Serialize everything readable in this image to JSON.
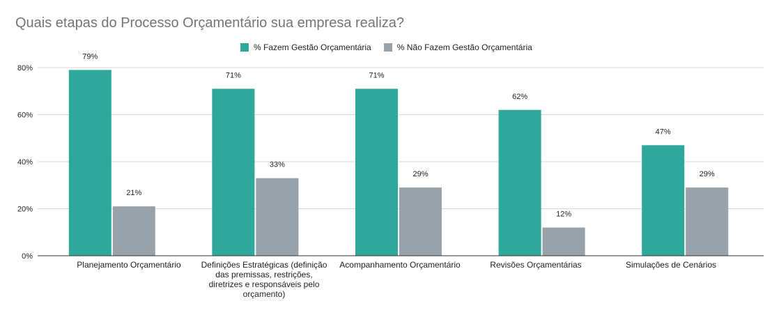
{
  "chart_data": {
    "type": "bar",
    "title": "Quais etapas do Processo Orçamentário sua empresa realiza?",
    "categories": [
      "Planejamento Orçamentário",
      "Definições Estratégicas (definição das premissas, restrições, diretrizes e responsáveis pelo orçamento)",
      "Acompanhamento Orçamentário",
      "Revisões Orçamentárias",
      "Simulações de Cenários"
    ],
    "series": [
      {
        "name": "% Fazem Gestão Orçamentária",
        "values": [
          79,
          71,
          71,
          62,
          47
        ],
        "labels": [
          "79%",
          "71%",
          "71%",
          "62%",
          "47%"
        ],
        "color": "#2ea89a"
      },
      {
        "name": "% Não Fazem Gestão Orçamentária",
        "values": [
          21,
          33,
          29,
          12,
          29
        ],
        "labels": [
          "21%",
          "33%",
          "29%",
          "12%",
          "29%"
        ],
        "color": "#97a2aa"
      }
    ],
    "ylim": [
      0,
      80
    ],
    "yticks": [
      0,
      20,
      40,
      60,
      80
    ],
    "ytick_labels": [
      "0%",
      "20%",
      "40%",
      "60%",
      "80%"
    ],
    "grid": true,
    "legend_position": "top-center"
  }
}
